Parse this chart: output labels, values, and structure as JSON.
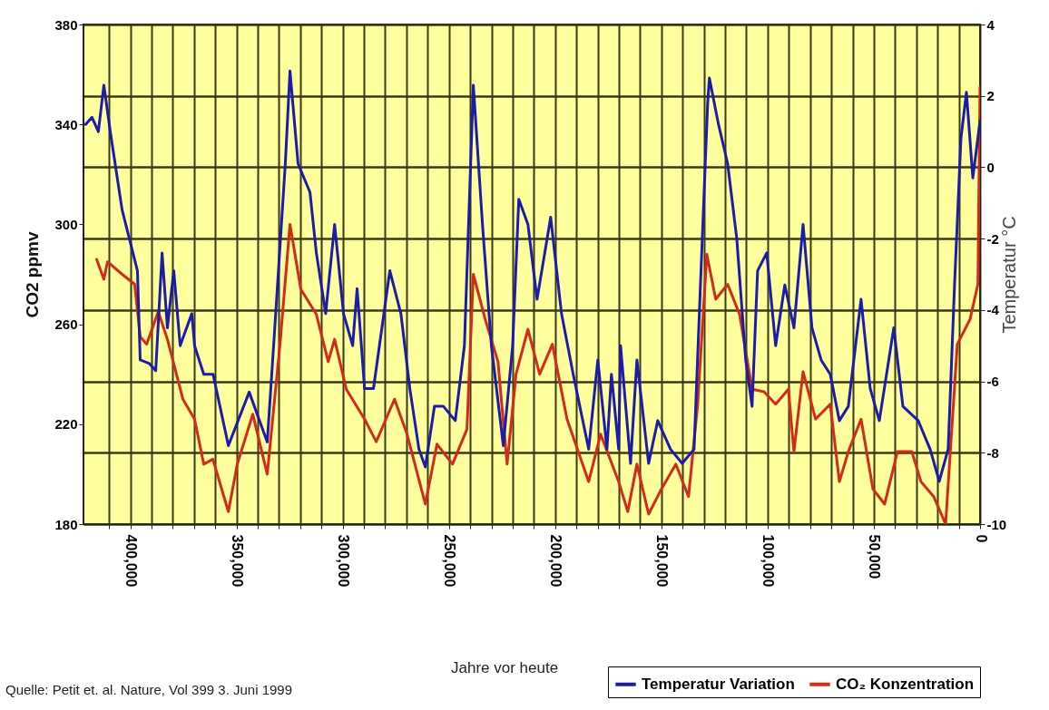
{
  "chart_data": {
    "type": "line",
    "ylabel": "CO2 ppmv",
    "y2label": "Temperatur  °C",
    "annotations": [
      "Quelle: Petit et. al. Nature, Vol 399 3. Juni 1999",
      "Jahre vor heute"
    ],
    "xlim": [
      422000,
      0
    ],
    "xticks": [
      {
        "value": 400000,
        "label": "400,000"
      },
      {
        "value": 350000,
        "label": "350,000"
      },
      {
        "value": 300000,
        "label": "300,000"
      },
      {
        "value": 250000,
        "label": "250,000"
      },
      {
        "value": 200000,
        "label": "200,000"
      },
      {
        "value": 150000,
        "label": "150,000"
      },
      {
        "value": 100000,
        "label": "100,000"
      },
      {
        "value": 50000,
        "label": "50,000"
      },
      {
        "value": 0,
        "label": "0"
      },
      {
        "value": 410000,
        "label": null
      },
      {
        "value": 390000,
        "label": null
      },
      {
        "value": 380000,
        "label": null
      },
      {
        "value": 370000,
        "label": null
      },
      {
        "value": 360000,
        "label": null
      },
      {
        "value": 340000,
        "label": null
      },
      {
        "value": 330000,
        "label": null
      },
      {
        "value": 320000,
        "label": null
      },
      {
        "value": 310000,
        "label": null
      },
      {
        "value": 290000,
        "label": null
      },
      {
        "value": 280000,
        "label": null
      },
      {
        "value": 270000,
        "label": null
      },
      {
        "value": 260000,
        "label": null
      },
      {
        "value": 240000,
        "label": null
      },
      {
        "value": 230000,
        "label": null
      },
      {
        "value": 220000,
        "label": null
      },
      {
        "value": 210000,
        "label": null
      },
      {
        "value": 190000,
        "label": null
      },
      {
        "value": 180000,
        "label": null
      },
      {
        "value": 170000,
        "label": null
      },
      {
        "value": 160000,
        "label": null
      },
      {
        "value": 140000,
        "label": null
      },
      {
        "value": 130000,
        "label": null
      },
      {
        "value": 120000,
        "label": null
      },
      {
        "value": 110000,
        "label": null
      },
      {
        "value": 90000,
        "label": null
      },
      {
        "value": 80000,
        "label": null
      },
      {
        "value": 70000,
        "label": null
      },
      {
        "value": 60000,
        "label": null
      },
      {
        "value": 40000,
        "label": null
      },
      {
        "value": 30000,
        "label": null
      },
      {
        "value": 20000,
        "label": null
      },
      {
        "value": 10000,
        "label": null
      }
    ],
    "ylim": [
      180,
      380
    ],
    "yticks": [
      180,
      220,
      260,
      300,
      340,
      380
    ],
    "y2lim": [
      -10,
      4
    ],
    "y2ticks": [
      -10,
      -8,
      -6,
      -4,
      -2,
      0,
      2,
      4
    ],
    "grid": true,
    "legend": "bottom right",
    "series": [
      {
        "name": "Temperatur Variation",
        "color": "#1c1ca8",
        "axis": "y2",
        "x": [
          421000,
          418000,
          415000,
          412400,
          409400,
          403800,
          396600,
          395300,
          391000,
          388000,
          385000,
          382500,
          379500,
          376500,
          371000,
          369700,
          365400,
          361000,
          353800,
          346600,
          344000,
          335500,
          332500,
          327000,
          324800,
          321000,
          315400,
          312400,
          308000,
          303800,
          299600,
          295300,
          293200,
          289700,
          285500,
          277800,
          272600,
          268400,
          264100,
          261100,
          256800,
          252600,
          247000,
          242700,
          238500,
          234200,
          230000,
          224400,
          220000,
          217100,
          212800,
          208500,
          202100,
          197000,
          191500,
          184200,
          179900,
          175600,
          173500,
          170100,
          169200,
          164500,
          161500,
          156000,
          151700,
          145700,
          140200,
          134600,
          131600,
          128200,
          127400,
          123100,
          118800,
          114500,
          110300,
          107300,
          104700,
          100400,
          96200,
          91900,
          87600,
          83300,
          79100,
          74800,
          70500,
          66200,
          62000,
          56000,
          51700,
          47400,
          40600,
          36300,
          29100,
          23500,
          19200,
          15000,
          12000,
          9000,
          6400,
          3400,
          0
        ],
        "values": [
          1.2,
          1.4,
          1.0,
          2.3,
          1.0,
          -1.2,
          -2.9,
          -5.4,
          -5.5,
          -5.7,
          -2.4,
          -4.5,
          -2.9,
          -5.0,
          -4.1,
          -5.0,
          -5.8,
          -5.8,
          -7.8,
          -6.7,
          -6.3,
          -7.7,
          -5.0,
          0.1,
          2.7,
          0.1,
          -0.7,
          -2.4,
          -4.1,
          -1.6,
          -4.1,
          -5.0,
          -3.4,
          -6.2,
          -6.2,
          -2.9,
          -4.1,
          -6.2,
          -7.9,
          -8.4,
          -6.7,
          -6.7,
          -7.1,
          -5.0,
          2.3,
          -1.6,
          -5.0,
          -7.8,
          -5.0,
          -0.9,
          -1.6,
          -3.7,
          -1.4,
          -4.1,
          -5.8,
          -7.9,
          -5.4,
          -7.9,
          -5.8,
          -7.9,
          -5.0,
          -8.3,
          -5.4,
          -8.3,
          -7.1,
          -7.9,
          -8.3,
          -7.9,
          -3.3,
          1.8,
          2.5,
          1.2,
          0.1,
          -2.0,
          -5.4,
          -6.7,
          -2.9,
          -2.4,
          -5.0,
          -3.3,
          -4.5,
          -1.6,
          -4.5,
          -5.4,
          -5.8,
          -7.1,
          -6.7,
          -3.7,
          -6.2,
          -7.1,
          -4.5,
          -6.7,
          -7.1,
          -7.9,
          -8.8,
          -7.9,
          -3.3,
          0.8,
          2.1,
          -0.3,
          1.3
        ]
      },
      {
        "name": "CO₂ Konzentration",
        "color": "#d42a1a",
        "x": [
          415800,
          412400,
          410700,
          403800,
          397900,
          395300,
          392300,
          386800,
          382500,
          375200,
          369700,
          365400,
          361100,
          353800,
          349600,
          342300,
          335500,
          329500,
          324800,
          319700,
          312400,
          306800,
          303800,
          298300,
          289700,
          284200,
          275600,
          269700,
          261100,
          255600,
          248300,
          241500,
          238500,
          232900,
          226900,
          222600,
          218400,
          212800,
          207300,
          201300,
          194400,
          184200,
          178600,
          170100,
          165800,
          161500,
          156000,
          150000,
          143200,
          137200,
          132900,
          128600,
          124400,
          118800,
          113200,
          107300,
          101700,
          96200,
          90200,
          87600,
          83300,
          77400,
          70500,
          66200,
          62000,
          56000,
          50400,
          44900,
          38900,
          32100,
          27800,
          21800,
          16200,
          10700,
          4700,
          1000,
          0
        ],
        "values": [
          286,
          278,
          285,
          280,
          276,
          255,
          252,
          265,
          254,
          230,
          222,
          204,
          206,
          185,
          204,
          224,
          200,
          252,
          300,
          274,
          264,
          245,
          254,
          234,
          222,
          213,
          230,
          216,
          188,
          212,
          204,
          218,
          280,
          262,
          245,
          204,
          240,
          258,
          240,
          252,
          222,
          197,
          216,
          197,
          185,
          204,
          184,
          194,
          204,
          191,
          228,
          288,
          270,
          276,
          264,
          234,
          233,
          228,
          234,
          209,
          241,
          222,
          228,
          197,
          209,
          222,
          194,
          188,
          209,
          209,
          197,
          191,
          180,
          252,
          262,
          276,
          355
        ]
      }
    ]
  }
}
